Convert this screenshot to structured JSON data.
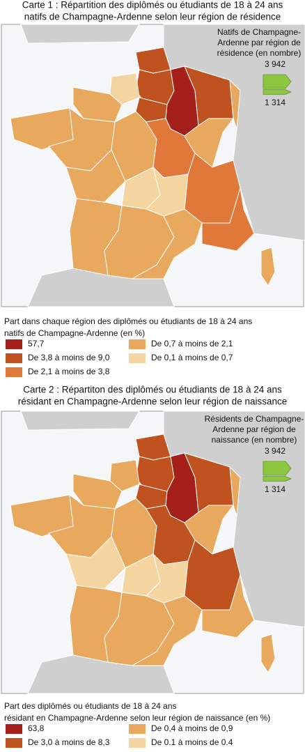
{
  "map1": {
    "title": [
      "Carte 1 : Répartition des diplômés ou étudiants de 18 à 24 ans",
      "natifs de Champagne-Ardenne selon leur région de résidence"
    ],
    "symbol_legend": {
      "title": [
        "Natifs de Champagne-",
        "Ardenne par région de",
        "résidence (en nombre)"
      ],
      "sizes": [
        {
          "value": 3942,
          "label": "3 942"
        },
        {
          "value": 1314,
          "label": "1 314"
        }
      ]
    },
    "legend": {
      "title": [
        "Part dans chaque région des diplômés ou étudiants de 18 à 24 ans",
        "natifs de Champagne-Ardenne (en %)"
      ],
      "classes": [
        {
          "label": "57,7",
          "color": "#a51f1b"
        },
        {
          "label": "De 3,8 à moins de 9,0",
          "color": "#c0521f"
        },
        {
          "label": "De 2,1 à moins de 3,8",
          "color": "#e0783a"
        },
        {
          "label": "De 0,7 à moins de 2,1",
          "color": "#e8a85d"
        },
        {
          "label": "De 0,1 à moins de 0,7",
          "color": "#f4d49f"
        }
      ]
    }
  },
  "map2": {
    "title": [
      "Carte 2 : Répartiton des diplômés ou étudiants de 18 à 24 ans",
      "résidant en Champagne-Ardenne selon leur région de naissance"
    ],
    "symbol_legend": {
      "title": [
        "Résidents de Champagne-",
        "Ardenne par région de",
        "naissance (en nombre)"
      ],
      "sizes": [
        {
          "value": 3942,
          "label": "3 942"
        },
        {
          "value": 1314,
          "label": "1 314"
        }
      ]
    },
    "legend": {
      "title": [
        "Part des diplômés ou étudiants de 18 à 24 ans",
        "résidant en Champagne-Ardenne selon leur région de naissance (en %)"
      ],
      "classes": [
        {
          "label": "63,8",
          "color": "#a51f1b"
        },
        {
          "label": "De 3,0 à moins de 8,3",
          "color": "#c0521f"
        },
        {
          "label": "De 0,4 à moins de 0,9",
          "color": "#e8a85d"
        },
        {
          "label": "De 0.1 à moins de 0.4",
          "color": "#f4d49f"
        }
      ]
    }
  }
}
